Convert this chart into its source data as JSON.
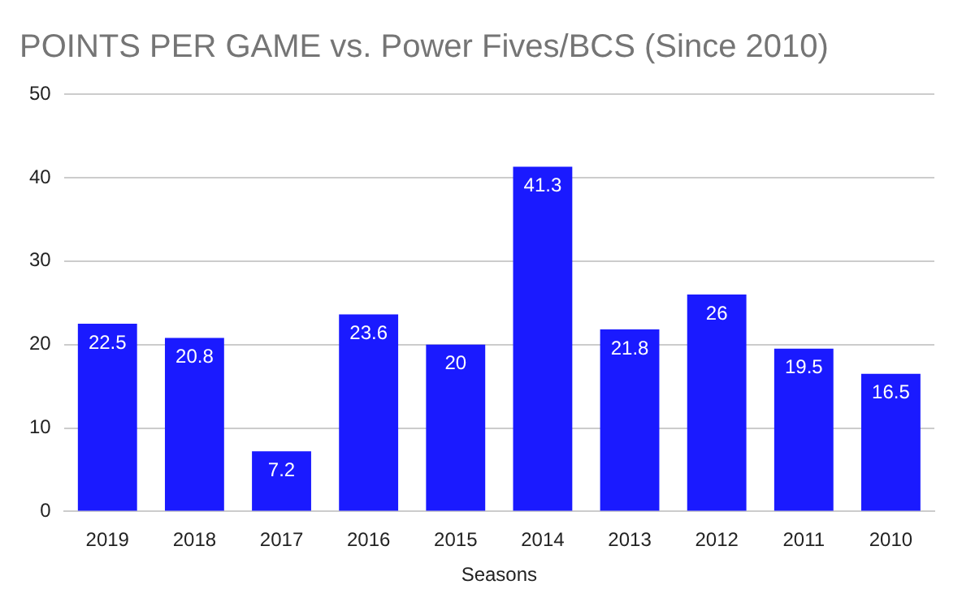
{
  "chart_data": {
    "type": "bar",
    "title": "POINTS PER GAME vs. Power Fives/BCS (Since 2010)",
    "xlabel": "Seasons",
    "categories": [
      "2019",
      "2018",
      "2017",
      "2016",
      "2015",
      "2014",
      "2013",
      "2012",
      "2011",
      "2010"
    ],
    "values": [
      22.5,
      20.8,
      7.2,
      23.6,
      20,
      41.3,
      21.8,
      26,
      19.5,
      16.5
    ],
    "color": "#1a1aff",
    "ylim": [
      0,
      50
    ],
    "yticks": [
      0,
      10,
      20,
      30,
      40,
      50
    ],
    "grid": "y",
    "data_labels": true,
    "legend": false
  }
}
